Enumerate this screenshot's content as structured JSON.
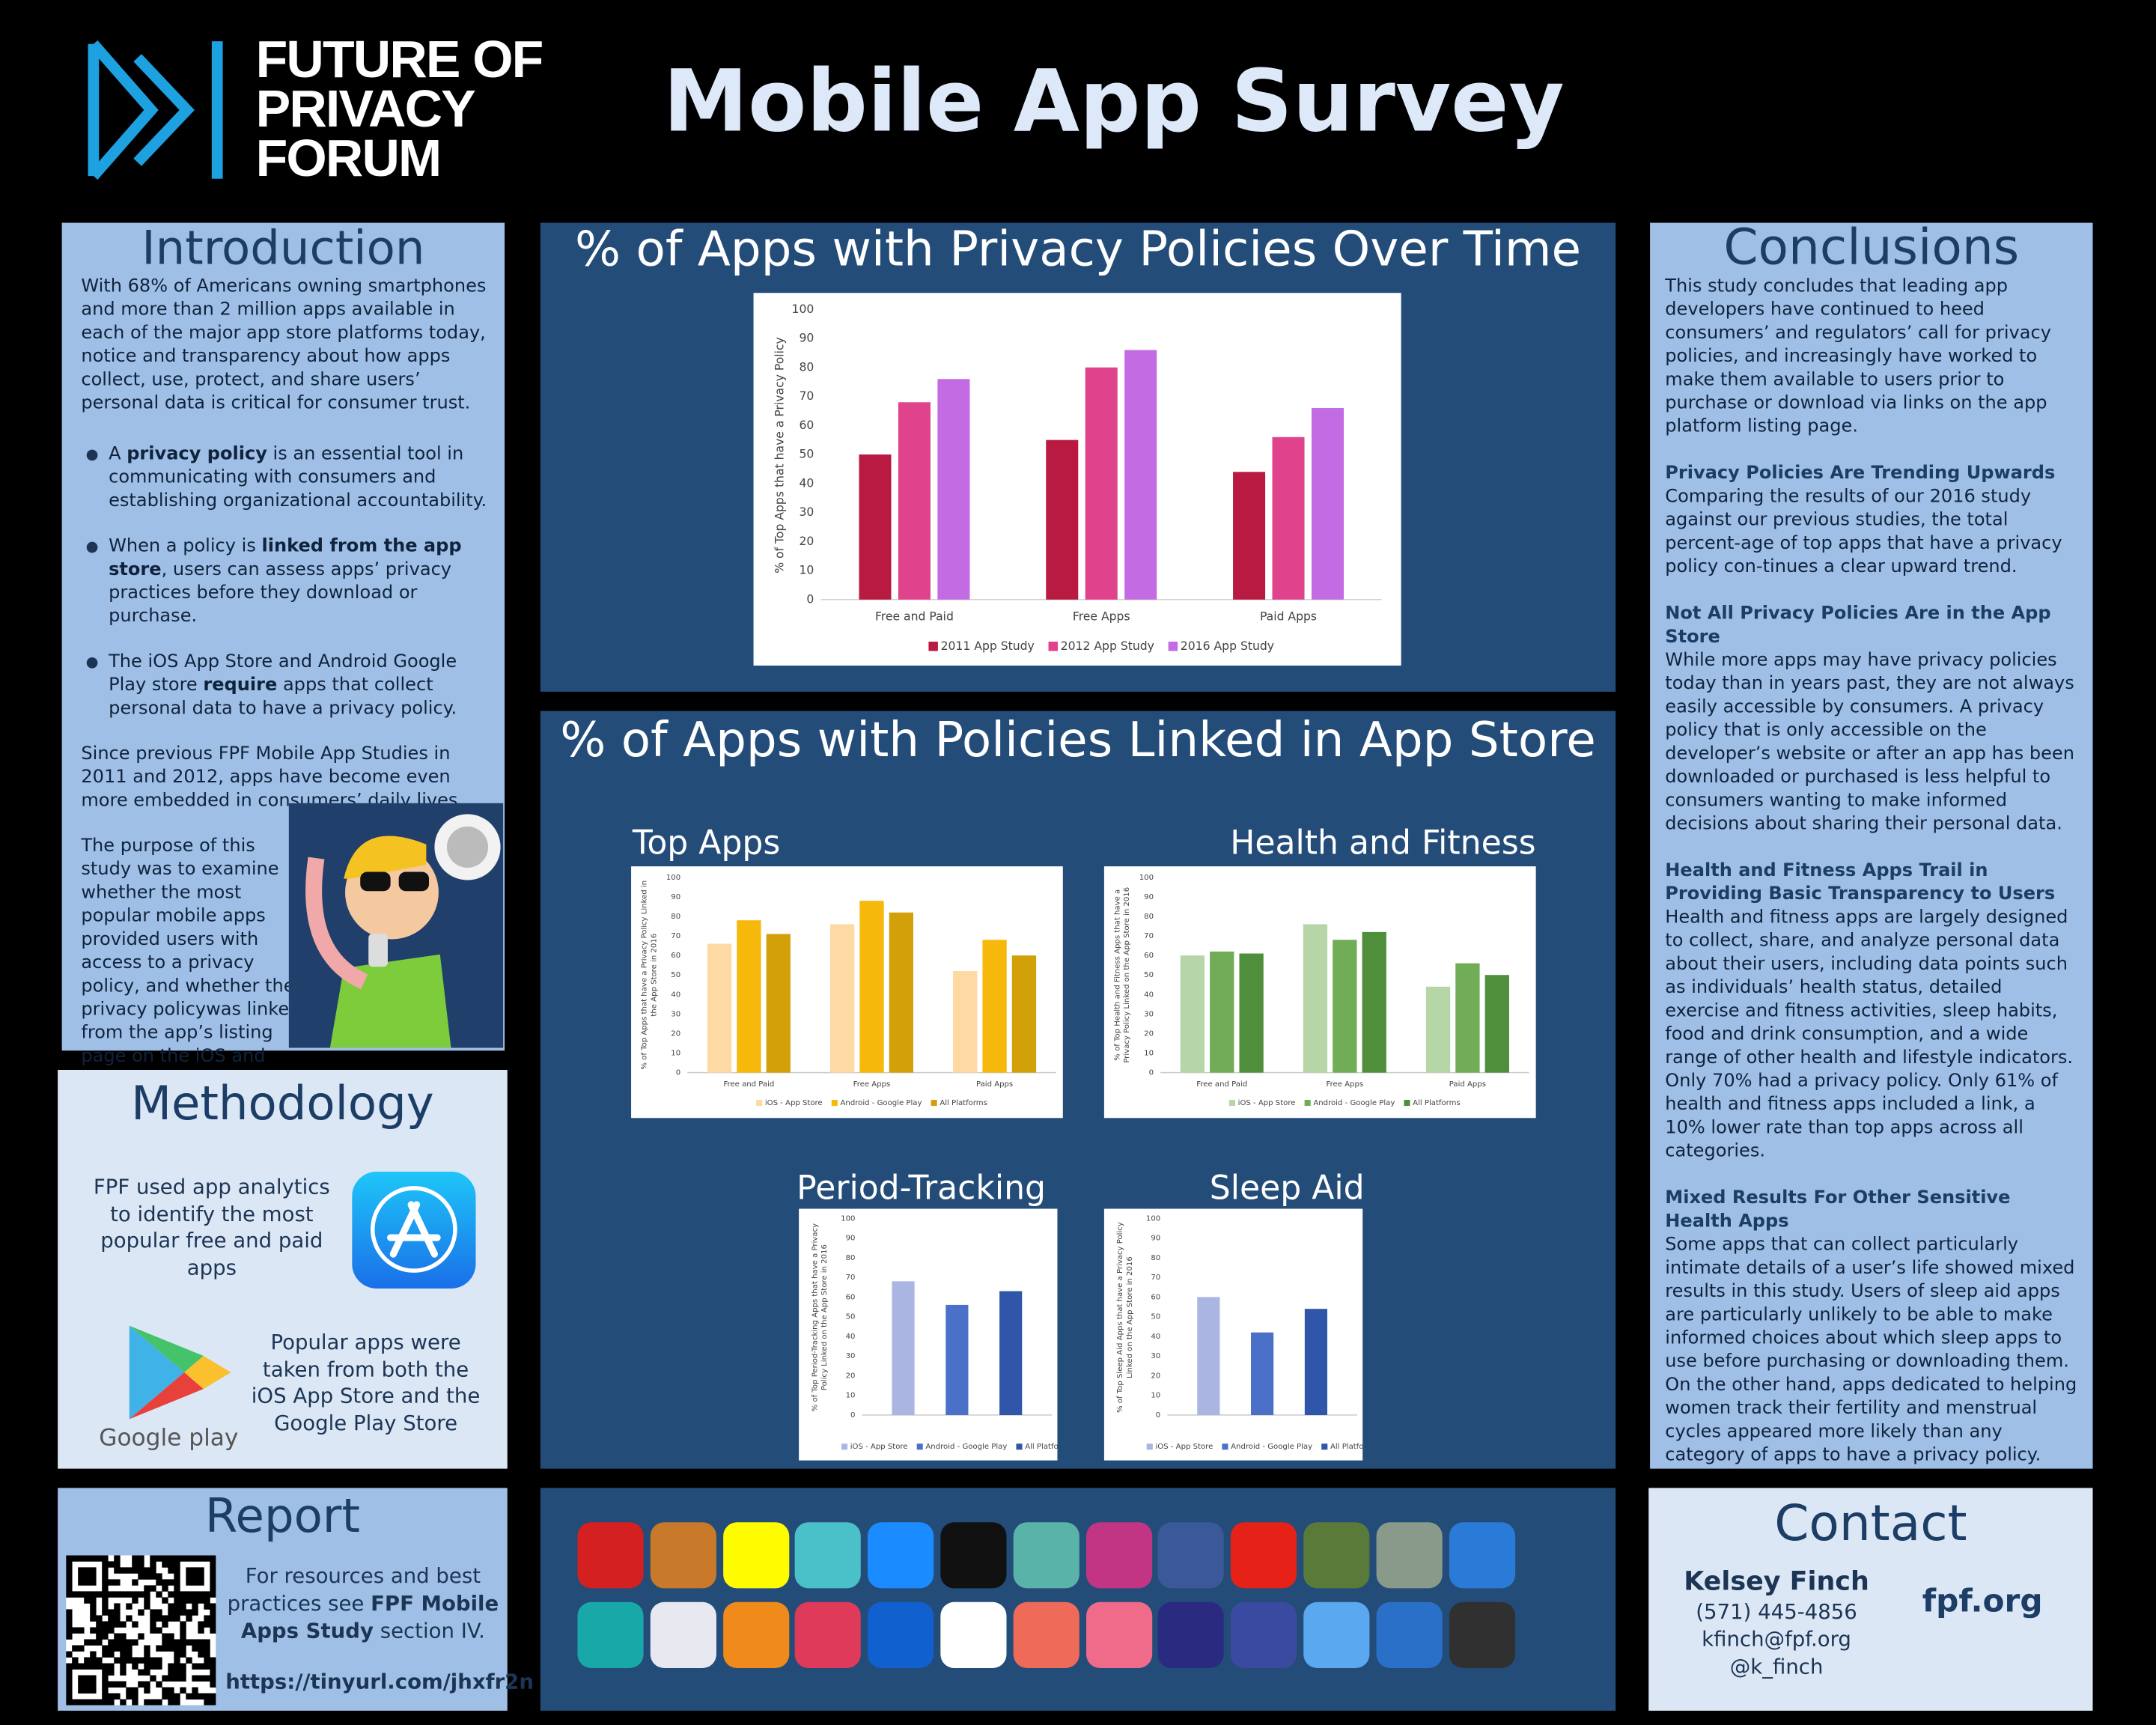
{
  "header": {
    "logo_lines": [
      "FUTURE OF",
      "PRIVACY",
      "FORUM"
    ],
    "title": "Mobile App Survey"
  },
  "introduction": {
    "title": "Introduction",
    "lead": "With 68% of Americans owning smartphones and more than 2 million apps available in each of the major app store platforms today, notice and transparency about how apps collect, use, protect, and share users’ personal data is critical for consumer trust.",
    "bullets": [
      {
        "before": "A ",
        "bold": "privacy policy",
        "after": " is an essential tool in communicating with consumers and establishing organizational accountability."
      },
      {
        "before": "When a policy is ",
        "bold": "linked from the app store",
        "after": ", users can assess apps’ privacy practices before they download or purchase."
      },
      {
        "before": "The iOS App Store and Android Google Play store ",
        "bold": "require",
        "after": " apps that collect personal data to have a privacy policy."
      }
    ],
    "since": "Since previous FPF Mobile App Studies in 2011 and 2012, apps have become even more embedded in consumers’ daily lives.",
    "purpose": "The purpose of this study was to examine whether the most popular mobile apps provided users with access to a privacy policy, and whether the privacy policywas linked from the app’s listing page on the iOS and Android app stores."
  },
  "methodology": {
    "title": "Methodology",
    "analytics": "FPF used app analytics to identify the most popular free and paid apps",
    "stores": "Popular apps were taken from both the iOS App Store and the Google Play Store",
    "google_play_label": "Google play"
  },
  "report": {
    "title": "Report",
    "before": "For resources and best practices see ",
    "bold": "FPF Mobile Apps Study",
    "after": " section IV.",
    "link": "https://tinyurl.com/jhxfr2n"
  },
  "linked_panel": {
    "title": "% of Apps with Policies Linked in App Store"
  },
  "conclusions": {
    "title": "Conclusions",
    "lead": "This study concludes that leading app developers have continued to heed consumers’ and regulators’ call for privacy policies, and increasingly have worked to make them available to users prior to purchase or download via links on the app platform listing page.",
    "sections": [
      {
        "heading": "Privacy Policies Are Trending Upwards",
        "body": "Comparing the results of our 2016 study against our previous studies, the total percent-age of top apps that have a privacy policy con-tinues a clear upward trend."
      },
      {
        "heading": "Not All Privacy Policies Are in the App Store",
        "body": "While more apps may have privacy policies today than in years past, they are not always easily accessible by consumers. A privacy policy that is only accessible on the developer’s website or after an app has been downloaded or purchased is less helpful to consumers wanting to make informed decisions about sharing their personal data."
      },
      {
        "heading": "Health and Fitness Apps Trail in Providing Basic Transparency to Users",
        "body": "Health and fitness apps are largely designed to collect, share, and analyze personal data about their users, including data points such as individuals’ health status, detailed exercise and fitness activities, sleep habits, food and drink consumption, and a wide range of other health and lifestyle indicators. Only 70% had a privacy policy. Only 61% of health and fitness apps included a link, a 10% lower rate than top apps across all categories."
      },
      {
        "heading": "Mixed Results For Other Sensitive Health Apps",
        "body": "Some apps that can collect particularly intimate details of a user’s life showed mixed results in this study.  Users of sleep aid apps are particularly unlikely to be able to make informed choices about which sleep apps to use before purchasing or downloading them. On the other hand, apps dedicated to helping women track their fertility and menstrual cycles appeared more likely than any category of apps to have a privacy policy."
      }
    ]
  },
  "contact": {
    "title": "Contact",
    "name": "Kelsey Finch",
    "phone": "(571) 445-4856",
    "email": "kfinch@fpf.org",
    "handle": "@k_finch",
    "site": "fpf.org"
  },
  "chart_data": [
    {
      "type": "bar",
      "title": "% of Apps with Privacy Policies Over Time",
      "y_label": "% of Top Apps that have a Privacy Policy",
      "categories": [
        "Free and Paid",
        "Free Apps",
        "Paid Apps"
      ],
      "series": [
        {
          "name": "2011 App Study",
          "color": "#b81a42",
          "values": [
            50,
            55,
            44
          ]
        },
        {
          "name": "2012 App Study",
          "color": "#e0428c",
          "values": [
            68,
            80,
            56
          ]
        },
        {
          "name": "2016 App Study",
          "color": "#c36be3",
          "values": [
            76,
            86,
            66
          ]
        }
      ],
      "ylim": [
        0,
        100
      ],
      "yticks": [
        0,
        10,
        20,
        30,
        40,
        50,
        60,
        70,
        80,
        90,
        100
      ],
      "grid": false
    },
    {
      "type": "bar",
      "title": "Top Apps",
      "y_label": "% of Top Apps that have a Privacy Policy Linked in the App Store in 2016",
      "categories": [
        "Free and Paid",
        "Free Apps",
        "Paid Apps"
      ],
      "series": [
        {
          "name": "iOS - App Store",
          "color": "#fdd9a3",
          "values": [
            66,
            76,
            52
          ]
        },
        {
          "name": "Android - Google Play",
          "color": "#f6b80a",
          "values": [
            78,
            88,
            68
          ]
        },
        {
          "name": "All Platforms",
          "color": "#d2a10a",
          "values": [
            71,
            82,
            60
          ]
        }
      ],
      "ylim": [
        0,
        100
      ],
      "yticks": [
        0,
        10,
        20,
        30,
        40,
        50,
        60,
        70,
        80,
        90,
        100
      ],
      "grid": false
    },
    {
      "type": "bar",
      "title": "Health and Fitness",
      "y_label": "% of Top Health and Fitness Apps that have a Privacy Policy Linked on the App Store in 2016",
      "categories": [
        "Free and Paid",
        "Free Apps",
        "Paid Apps"
      ],
      "series": [
        {
          "name": "iOS - App Store",
          "color": "#b6d6a8",
          "values": [
            60,
            76,
            44
          ]
        },
        {
          "name": "Android - Google Play",
          "color": "#70ad56",
          "values": [
            62,
            68,
            56
          ]
        },
        {
          "name": "All Platforms",
          "color": "#4f8e3b",
          "values": [
            61,
            72,
            50
          ]
        }
      ],
      "ylim": [
        0,
        100
      ],
      "yticks": [
        0,
        10,
        20,
        30,
        40,
        50,
        60,
        70,
        80,
        90,
        100
      ],
      "grid": false
    },
    {
      "type": "bar",
      "title": "Period-Tracking",
      "y_label": "% of Top Period-Tracking Apps that have a Privacy Policy Linked on the App Store in 2016",
      "categories": [
        null
      ],
      "series": [
        {
          "name": "iOS - App Store",
          "color": "#abb5e2",
          "values": [
            68
          ]
        },
        {
          "name": "Android - Google Play",
          "color": "#4a70c8",
          "values": [
            56
          ]
        },
        {
          "name": "All Platforms",
          "color": "#2f56a8",
          "values": [
            63
          ]
        }
      ],
      "ylim": [
        0,
        100
      ],
      "yticks": [
        0,
        10,
        20,
        30,
        40,
        50,
        60,
        70,
        80,
        90,
        100
      ],
      "grid": false
    },
    {
      "type": "bar",
      "title": "Sleep Aid",
      "y_label": "% of Top Sleep Aid Apps that have a Privacy Policy Linked on the App Store in 2016",
      "categories": [
        null
      ],
      "series": [
        {
          "name": "iOS - App Store",
          "color": "#abb5e2",
          "values": [
            60
          ]
        },
        {
          "name": "Android - Google Play",
          "color": "#4a70c8",
          "values": [
            42
          ]
        },
        {
          "name": "All Platforms",
          "color": "#2f56a8",
          "values": [
            54
          ]
        }
      ],
      "ylim": [
        0,
        100
      ],
      "yticks": [
        0,
        10,
        20,
        30,
        40,
        50,
        60,
        70,
        80,
        90,
        100
      ],
      "grid": false
    }
  ]
}
